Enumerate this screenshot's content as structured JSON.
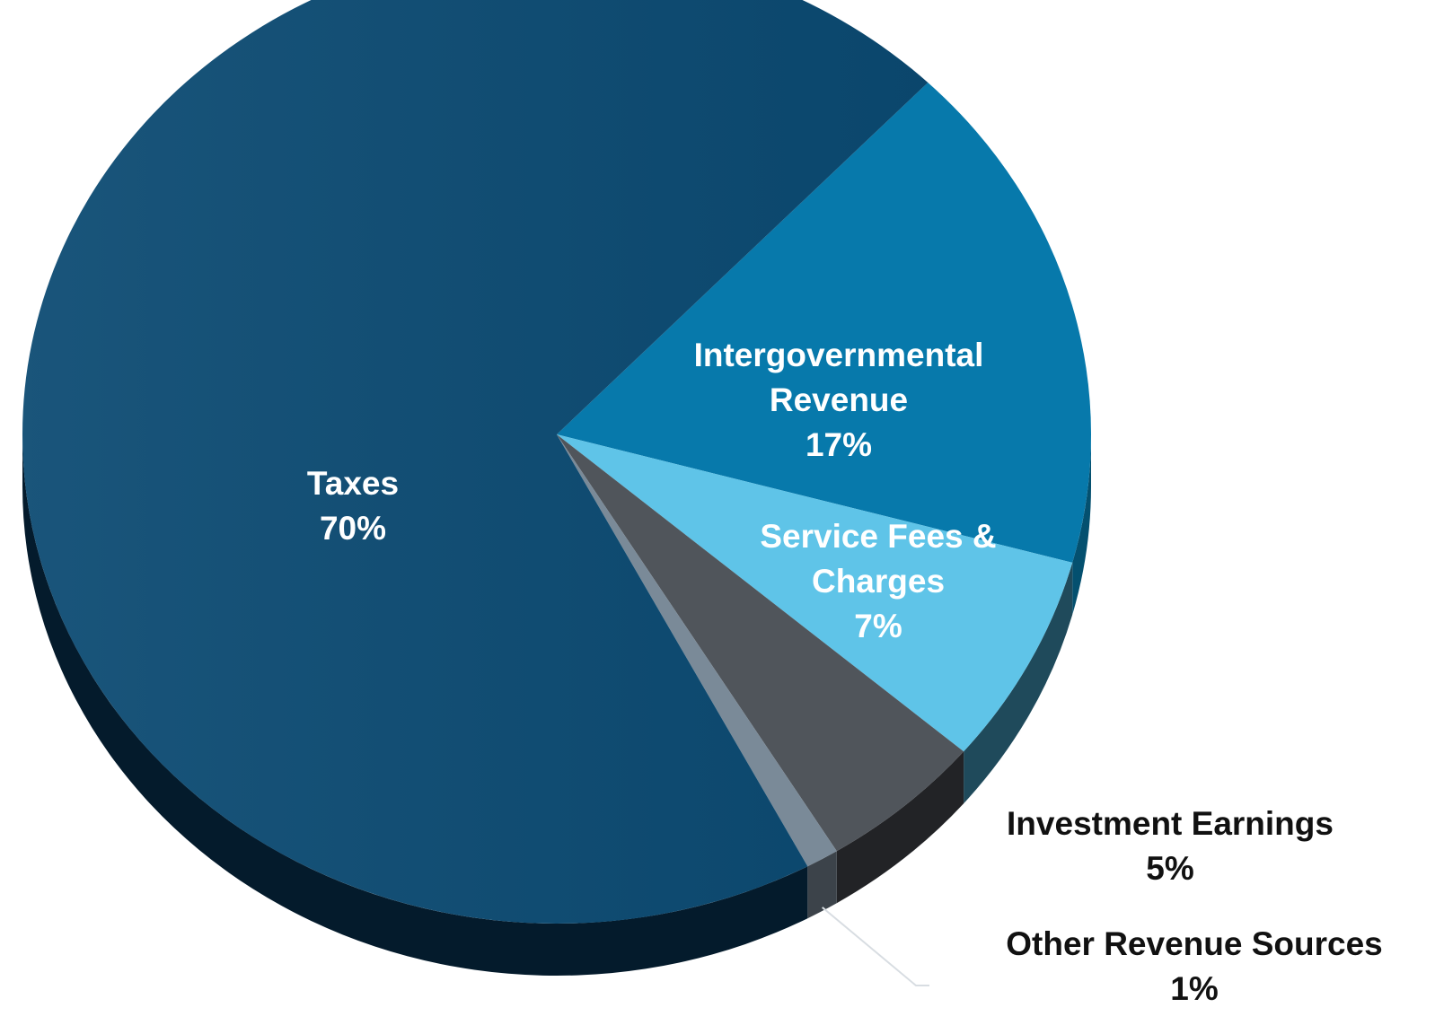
{
  "chart_data": {
    "type": "pie",
    "title": "",
    "slices": [
      {
        "label_lines": [
          "Intergovernmental",
          "Revenue"
        ],
        "value": 17,
        "value_label": "17%",
        "color": "#0779ab",
        "side_color": "#04506f",
        "label_color": "#ffffff"
      },
      {
        "label_lines": [
          "Service Fees &",
          "Charges"
        ],
        "value": 7,
        "value_label": "7%",
        "color": "#5fc4e8",
        "side_color": "#1f4a5b",
        "label_color": "#ffffff"
      },
      {
        "label_lines": [
          "Investment Earnings"
        ],
        "value": 5,
        "value_label": "5%",
        "color": "#50555b",
        "side_color": "#222326",
        "label_color": "#111111"
      },
      {
        "label_lines": [
          "Other Revenue Sources"
        ],
        "value": 1,
        "value_label": "1%",
        "color": "#7a8a98",
        "side_color": "#3c434a",
        "label_color": "#111111"
      },
      {
        "label_lines": [
          "Taxes"
        ],
        "value": 70,
        "value_label": "70%",
        "color": "#0b4a72",
        "side_color": "#041b2c",
        "label_color": "#ffffff"
      }
    ],
    "legend": "none"
  }
}
